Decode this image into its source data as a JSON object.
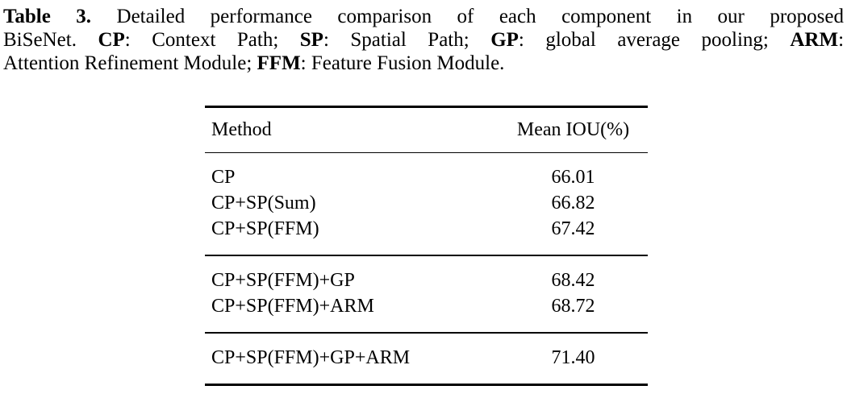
{
  "caption": {
    "lines": [
      [
        {
          "t": "Table 3.",
          "b": true
        },
        {
          "t": " Detailed performance comparison of each component in our proposed",
          "b": false
        }
      ],
      [
        {
          "t": "BiSeNet. ",
          "b": false
        },
        {
          "t": "CP",
          "b": true
        },
        {
          "t": ": Context Path; ",
          "b": false
        },
        {
          "t": "SP",
          "b": true
        },
        {
          "t": ": Spatial Path; ",
          "b": false
        },
        {
          "t": "GP",
          "b": true
        },
        {
          "t": ": global average pooling; ",
          "b": false
        },
        {
          "t": "ARM",
          "b": true
        },
        {
          "t": ":",
          "b": false
        }
      ],
      [
        {
          "t": "Attention Refinement Module; ",
          "b": false
        },
        {
          "t": "FFM",
          "b": true
        },
        {
          "t": ": Feature Fusion Module.",
          "b": false
        }
      ]
    ]
  },
  "table": {
    "columns": [
      "Method",
      "Mean IOU(%)"
    ],
    "groups": [
      {
        "rows": [
          {
            "method": "CP",
            "mean_iou": "66.01"
          },
          {
            "method": "CP+SP(Sum)",
            "mean_iou": "66.82"
          },
          {
            "method": "CP+SP(FFM)",
            "mean_iou": "67.42"
          }
        ]
      },
      {
        "rows": [
          {
            "method": "CP+SP(FFM)+GP",
            "mean_iou": "68.42"
          },
          {
            "method": "CP+SP(FFM)+ARM",
            "mean_iou": "68.72"
          }
        ]
      },
      {
        "rows": [
          {
            "method": "CP+SP(FFM)+GP+ARM",
            "mean_iou": "71.40"
          }
        ]
      }
    ]
  },
  "chart_data": {
    "type": "table",
    "title": "Table 3. Detailed performance comparison of each component in our proposed BiSeNet.",
    "columns": [
      "Method",
      "Mean IOU(%)"
    ],
    "categories": [
      "CP",
      "CP+SP(Sum)",
      "CP+SP(FFM)",
      "CP+SP(FFM)+GP",
      "CP+SP(FFM)+ARM",
      "CP+SP(FFM)+GP+ARM"
    ],
    "values": [
      66.01,
      66.82,
      67.42,
      68.42,
      68.72,
      71.4
    ]
  },
  "colors": {
    "text": "#000000",
    "background": "#ffffff",
    "rule": "#000000"
  }
}
